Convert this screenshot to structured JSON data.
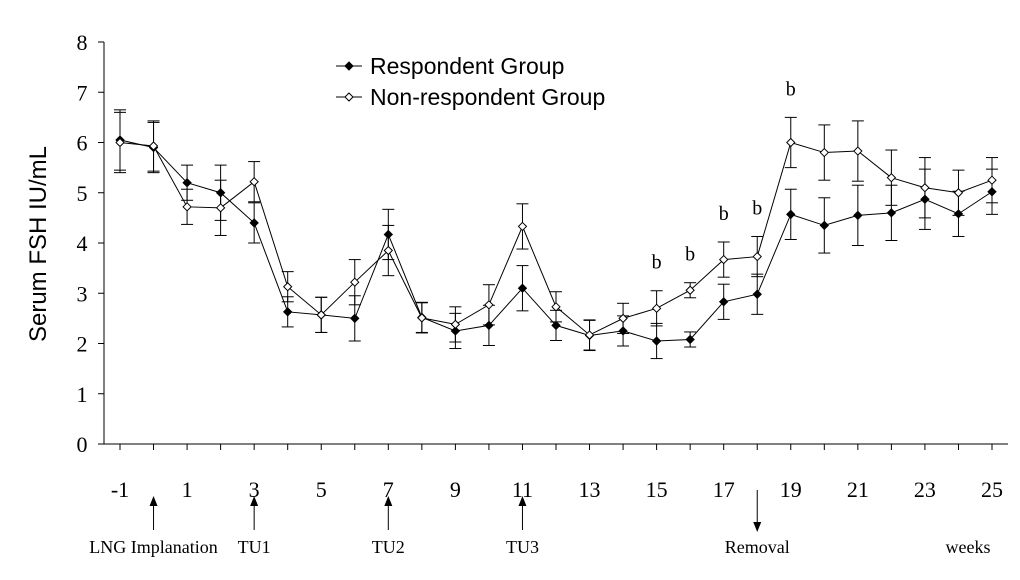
{
  "chart_data": {
    "type": "line",
    "ylabel": "Serum  FSH IU/mL",
    "xlabel": "weeks",
    "ylim": [
      0,
      8
    ],
    "yticks": [
      "0",
      "1",
      "2",
      "3",
      "4",
      "5",
      "6",
      "7",
      "8"
    ],
    "xlim": [
      -1,
      25
    ],
    "xticks": [
      "-1",
      "1",
      "3",
      "5",
      "7",
      "9",
      "11",
      "13",
      "15",
      "17",
      "19",
      "21",
      "23",
      "25"
    ],
    "legend_position": "top-center",
    "x": [
      -1,
      0,
      1,
      2,
      3,
      4,
      5,
      6,
      7,
      8,
      9,
      10,
      11,
      12,
      13,
      14,
      15,
      16,
      17,
      18,
      19,
      20,
      21,
      22,
      23,
      24,
      25
    ],
    "series": [
      {
        "name": "Respondent Group",
        "marker": "filled-diamond",
        "color": "#000000",
        "values": [
          6.05,
          5.9,
          5.2,
          5.0,
          4.4,
          2.63,
          2.57,
          2.5,
          4.17,
          2.52,
          2.25,
          2.36,
          3.1,
          2.36,
          2.16,
          2.25,
          2.05,
          2.08,
          2.83,
          2.98,
          4.57,
          4.35,
          4.55,
          4.6,
          4.87,
          4.58,
          5.02
        ],
        "errors": [
          0.6,
          0.5,
          0.35,
          0.55,
          0.4,
          0.3,
          0.35,
          0.45,
          0.5,
          0.3,
          0.35,
          0.4,
          0.45,
          0.3,
          0.3,
          0.3,
          0.35,
          0.15,
          0.35,
          0.4,
          0.5,
          0.55,
          0.6,
          0.55,
          0.6,
          0.45,
          0.45
        ]
      },
      {
        "name": "Non-respondent Group",
        "marker": "open-diamond",
        "color": "#000000",
        "values": [
          6.0,
          5.93,
          4.72,
          4.7,
          5.22,
          3.13,
          2.57,
          3.22,
          3.85,
          2.51,
          2.38,
          2.77,
          4.33,
          2.73,
          2.17,
          2.5,
          2.7,
          3.06,
          3.67,
          3.73,
          6.0,
          5.8,
          5.83,
          5.3,
          5.1,
          5.0,
          5.25
        ]
      }
    ],
    "annotations": [
      {
        "text": "b",
        "x": 15
      },
      {
        "text": "b",
        "x": 16
      },
      {
        "text": "b",
        "x": 17
      },
      {
        "text": "b",
        "x": 18
      },
      {
        "text": "b",
        "x": 19
      }
    ],
    "events": [
      {
        "label": "LNG Implanation",
        "x": 0,
        "arrow": "up"
      },
      {
        "label": "TU1",
        "x": 3,
        "arrow": "up"
      },
      {
        "label": "TU2",
        "x": 7,
        "arrow": "up"
      },
      {
        "label": "TU3",
        "x": 11,
        "arrow": "up"
      },
      {
        "label": "Removal",
        "x": 18,
        "arrow": "down"
      }
    ]
  }
}
